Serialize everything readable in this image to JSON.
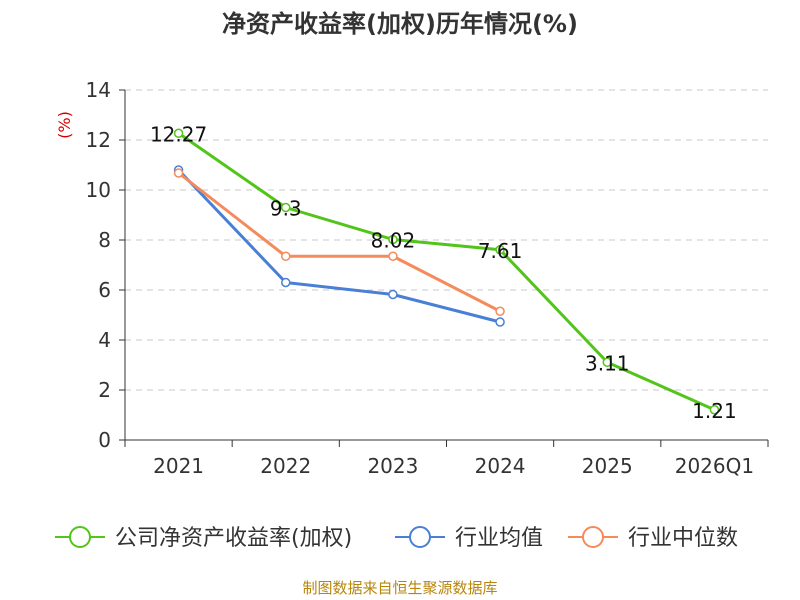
{
  "chart_data": {
    "type": "line",
    "title": "净资产收益率(加权)历年情况(%)",
    "ylabel": "(%)",
    "xlabel": "",
    "ylim": [
      0,
      14
    ],
    "yticks": [
      0,
      2,
      4,
      6,
      8,
      10,
      12,
      14
    ],
    "categories": [
      "2021",
      "2022",
      "2023",
      "2024",
      "2025",
      "2026Q1"
    ],
    "grid": true,
    "legend_position": "bottom",
    "series": [
      {
        "name": "公司净资产收益率(加权)",
        "color": "#52c41a",
        "values": [
          12.27,
          9.3,
          8.02,
          7.61,
          3.11,
          1.21
        ],
        "labels": [
          "12.27",
          "9.3",
          "8.02",
          "7.61",
          "3.11",
          "1.21"
        ]
      },
      {
        "name": "行业均值",
        "color": "#4a7fd6",
        "values": [
          10.8,
          6.3,
          5.82,
          4.72,
          null,
          null
        ]
      },
      {
        "name": "行业中位数",
        "color": "#f58a5b",
        "values": [
          10.68,
          7.35,
          7.35,
          5.15,
          null,
          null
        ]
      }
    ]
  },
  "source": "制图数据来自恒生聚源数据库"
}
